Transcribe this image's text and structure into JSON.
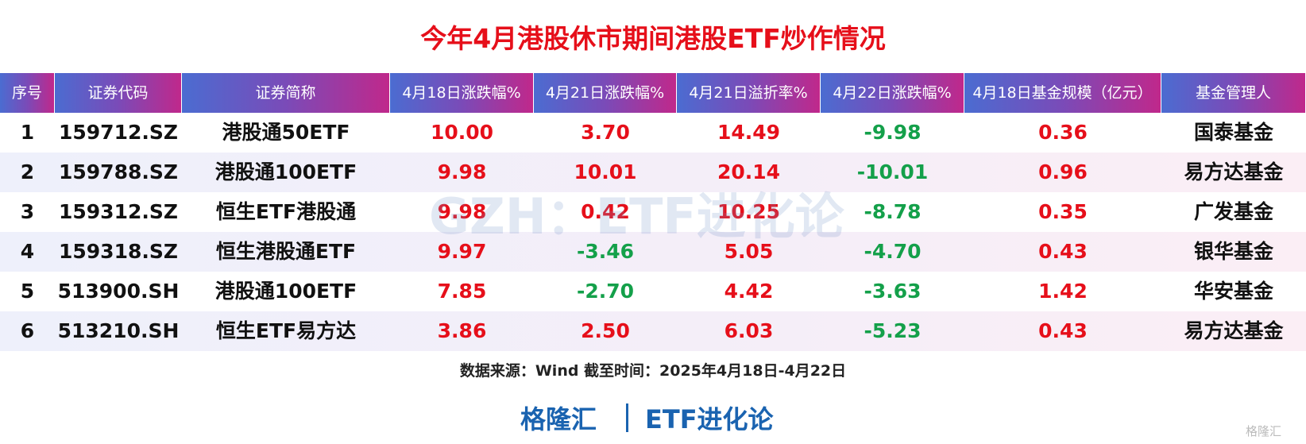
{
  "title": "今年4月港股休市期间港股ETF炒作情况",
  "table": {
    "header": [
      "序号",
      "证券代码",
      "证券简称",
      "4月18日涨跌幅%",
      "4月21日涨跌幅%",
      "4月21日溢折率%",
      "4月22日涨跌幅%",
      "4月18日基金规模（亿元）",
      "基金管理人"
    ],
    "rows": [
      [
        "1",
        "159712.SZ",
        "港股通50ETF",
        "10.00",
        "3.70",
        "14.49",
        "-9.98",
        "0.36",
        "国泰基金"
      ],
      [
        "2",
        "159788.SZ",
        "港股通100ETF",
        "9.98",
        "10.01",
        "20.14",
        "-10.01",
        "0.96",
        "易方达基金"
      ],
      [
        "3",
        "159312.SZ",
        "恒生ETF港股通",
        "9.98",
        "0.42",
        "10.25",
        "-8.78",
        "0.35",
        "广发基金"
      ],
      [
        "4",
        "159318.SZ",
        "恒生港股通ETF",
        "9.97",
        "-3.46",
        "5.05",
        "-4.70",
        "0.43",
        "银华基金"
      ],
      [
        "5",
        "513900.SH",
        "港股通100ETF",
        "7.85",
        "-2.70",
        "4.42",
        "-3.63",
        "1.42",
        "华安基金"
      ],
      [
        "6",
        "513210.SH",
        "恒生ETF易方达",
        "3.86",
        "2.50",
        "6.03",
        "-5.23",
        "0.43",
        "易方达基金"
      ]
    ]
  },
  "watermark": "GZH：ETF进化论",
  "source": "数据来源：Wind 截至时间：2025年4月18日-4月22日",
  "footer": {
    "left": "格隆汇",
    "right": "ETF进化论"
  },
  "logo": "格隆汇"
}
